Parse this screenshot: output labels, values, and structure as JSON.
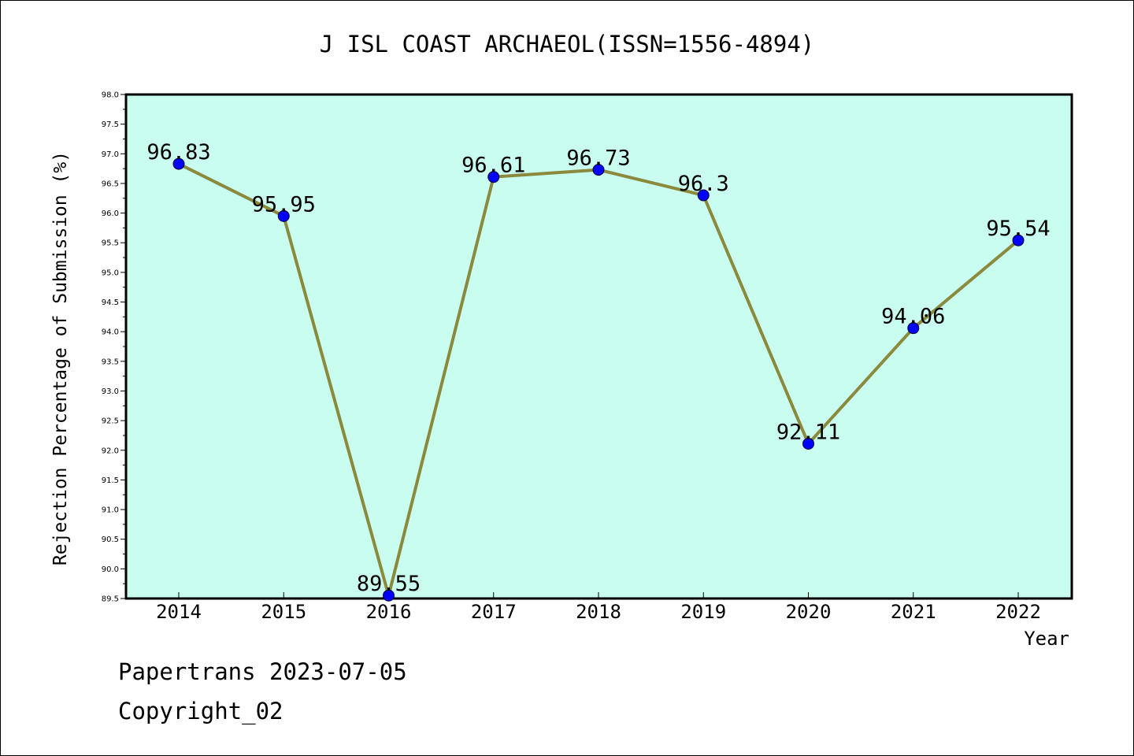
{
  "chart_data": {
    "type": "line",
    "title": "J ISL COAST ARCHAEOL(ISSN=1556-4894)",
    "xlabel": "Year",
    "ylabel": "Rejection Percentage of Submission (%)",
    "categories": [
      "2014",
      "2015",
      "2016",
      "2017",
      "2018",
      "2019",
      "2020",
      "2021",
      "2022"
    ],
    "values": [
      96.83,
      95.95,
      89.55,
      96.61,
      96.73,
      96.3,
      92.11,
      94.06,
      95.54
    ],
    "data_labels": [
      "96.83",
      "95.95",
      "89.55",
      "96.61",
      "96.73",
      "96.3",
      "92.11",
      "94.06",
      "95.54"
    ],
    "ylim": [
      89.5,
      98.0
    ],
    "yticks": [
      "89.5",
      "90.0",
      "90.5",
      "91.0",
      "91.5",
      "92.0",
      "92.5",
      "93.0",
      "93.5",
      "94.0",
      "94.5",
      "95.0",
      "95.5",
      "96.0",
      "96.5",
      "97.0",
      "97.5",
      "98.0"
    ],
    "grid": false,
    "legend": "none",
    "colors": {
      "plot_background": "#c8fdef",
      "line": "#8b8a3c",
      "marker": "#0000ff"
    }
  },
  "footer": {
    "line1": "Papertrans 2023-07-05",
    "line2": "Copyright_02"
  }
}
